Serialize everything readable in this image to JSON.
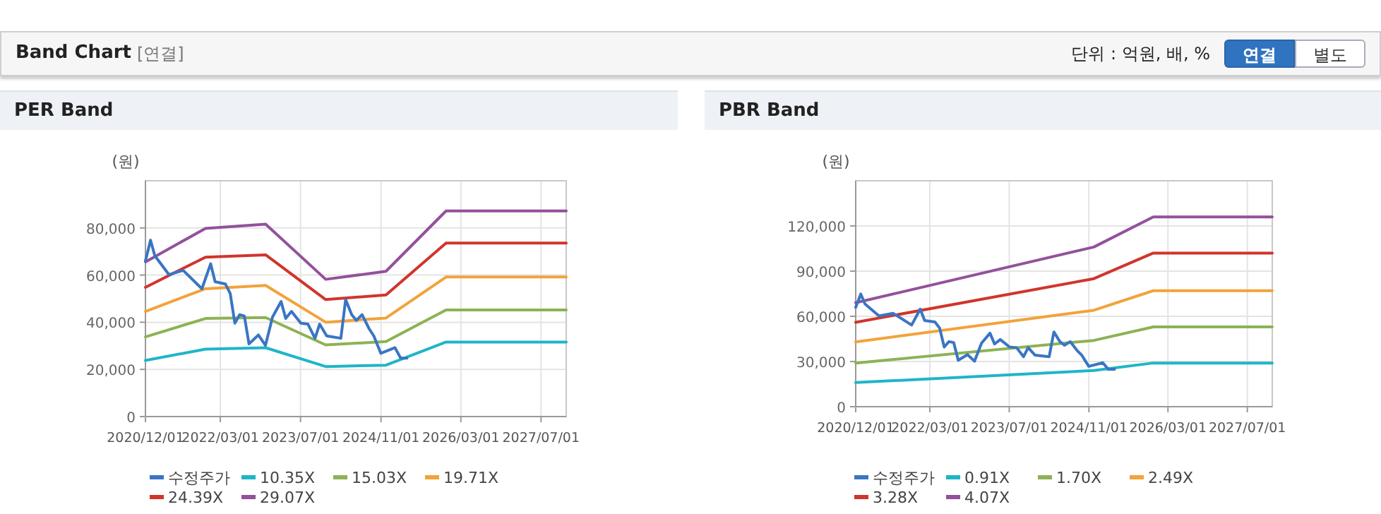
{
  "chart_data": [
    {
      "type": "other",
      "title": "Band Chart",
      "annotations": [
        "[연결]",
        "단위 : 억원, 배, %",
        "연결",
        "별도"
      ]
    },
    {
      "type": "line",
      "title": "PER Band",
      "ylabel": "(원)",
      "xlim": [
        "2020-12-01",
        "2027-12-01"
      ],
      "ylim": [
        0,
        100000
      ],
      "xticks": [
        {
          "value": "2020-12-01",
          "label": "2020/12/01"
        },
        {
          "value": "2022-03-01",
          "label": "2022/03/01"
        },
        {
          "value": "2023-07-01",
          "label": "2023/07/01"
        },
        {
          "value": "2024-11-01",
          "label": "2024/11/01"
        },
        {
          "value": "2026-03-01",
          "label": "2026/03/01"
        },
        {
          "value": "2027-07-01",
          "label": "2027/07/01"
        }
      ],
      "yticks": [
        0,
        {
          "value": 20000,
          "label": "20,000"
        },
        {
          "value": 40000,
          "label": "40,000"
        },
        {
          "value": 60000,
          "label": "60,000"
        },
        {
          "value": 80000,
          "label": "80,000"
        }
      ],
      "grid": true,
      "legend": "bottom",
      "series": [
        {
          "name": "수정주가",
          "color": "#3a75c4",
          "x": [
            "2020-12-01",
            "2021-01-01",
            "2021-01-27",
            "2021-04-23",
            "2021-07-18",
            "2021-11-09",
            "2022-01-01",
            "2022-01-28",
            "2022-04-01",
            "2022-04-30",
            "2022-05-28",
            "2022-06-26",
            "2022-07-25",
            "2022-08-22",
            "2022-10-18",
            "2022-11-30",
            "2023-01-12",
            "2023-03-05",
            "2023-04-02",
            "2023-05-07",
            "2023-07-03",
            "2023-08-15",
            "2023-09-27",
            "2023-10-25",
            "2023-12-07",
            "2024-03-02",
            "2024-03-31",
            "2024-05-07",
            "2024-06-04",
            "2024-07-09",
            "2024-08-21",
            "2024-09-18",
            "2024-10-31",
            "2025-01-25",
            "2025-02-28",
            "2025-04-07"
          ],
          "values": [
            66000,
            74800,
            68200,
            60200,
            62000,
            54200,
            64800,
            57200,
            56200,
            52200,
            39600,
            43200,
            42600,
            30800,
            34600,
            30200,
            42200,
            48800,
            41600,
            44600,
            39600,
            39200,
            33200,
            39200,
            34200,
            33200,
            49600,
            43200,
            40800,
            43200,
            37200,
            34200,
            26800,
            29200,
            24800,
            24800
          ]
        },
        {
          "name": "10.35X",
          "color": "#1fb5c8",
          "x": [
            "2020-12-01",
            "2021-12-01",
            "2022-12-01",
            "2023-12-01",
            "2024-12-01",
            "2025-12-01",
            "2027-12-01"
          ],
          "values": [
            23800,
            28600,
            29200,
            21200,
            21800,
            31600,
            31600
          ]
        },
        {
          "name": "15.03X",
          "color": "#8db255",
          "x": [
            "2020-12-01",
            "2021-12-01",
            "2022-12-01",
            "2023-12-01",
            "2024-12-01",
            "2025-12-01",
            "2027-12-01"
          ],
          "values": [
            33800,
            41600,
            42000,
            30400,
            31800,
            45200,
            45200
          ]
        },
        {
          "name": "19.71X",
          "color": "#f2a33a",
          "x": [
            "2020-12-01",
            "2021-12-01",
            "2022-12-01",
            "2023-12-01",
            "2024-12-01",
            "2025-12-01",
            "2027-12-01"
          ],
          "values": [
            44600,
            54200,
            55600,
            40000,
            41800,
            59200,
            59200
          ]
        },
        {
          "name": "24.39X",
          "color": "#d0352c",
          "x": [
            "2020-12-01",
            "2021-12-01",
            "2022-12-01",
            "2023-12-01",
            "2024-12-01",
            "2025-12-01",
            "2027-12-01"
          ],
          "values": [
            54800,
            67600,
            68600,
            49600,
            51600,
            73600,
            73600
          ]
        },
        {
          "name": "29.07X",
          "color": "#93519b",
          "x": [
            "2020-12-01",
            "2021-12-01",
            "2022-12-01",
            "2023-12-01",
            "2024-12-01",
            "2025-12-01",
            "2027-12-01"
          ],
          "values": [
            65600,
            79800,
            81600,
            58200,
            61600,
            87200,
            87200
          ]
        }
      ]
    },
    {
      "type": "line",
      "title": "PBR Band",
      "ylabel": "(원)",
      "xlim": [
        "2020-12-01",
        "2027-12-01"
      ],
      "ylim": [
        0,
        150000
      ],
      "xticks": [
        {
          "value": "2020-12-01",
          "label": "2020/12/01"
        },
        {
          "value": "2022-03-01",
          "label": "2022/03/01"
        },
        {
          "value": "2023-07-01",
          "label": "2023/07/01"
        },
        {
          "value": "2024-11-01",
          "label": "2024/11/01"
        },
        {
          "value": "2026-03-01",
          "label": "2026/03/01"
        },
        {
          "value": "2027-07-01",
          "label": "2027/07/01"
        }
      ],
      "yticks": [
        0,
        {
          "value": 30000,
          "label": "30,000"
        },
        {
          "value": 60000,
          "label": "60,000"
        },
        {
          "value": 90000,
          "label": "90,000"
        },
        {
          "value": 120000,
          "label": "120,000"
        }
      ],
      "grid": true,
      "legend": "bottom",
      "series": [
        {
          "name": "수정주가",
          "color": "#3a75c4",
          "x": [
            "2020-12-01",
            "2021-01-01",
            "2021-01-27",
            "2021-04-23",
            "2021-07-18",
            "2021-11-09",
            "2022-01-01",
            "2022-01-28",
            "2022-04-01",
            "2022-04-30",
            "2022-05-28",
            "2022-06-26",
            "2022-07-25",
            "2022-08-22",
            "2022-10-18",
            "2022-11-30",
            "2023-01-12",
            "2023-03-05",
            "2023-04-02",
            "2023-05-07",
            "2023-07-03",
            "2023-08-15",
            "2023-09-27",
            "2023-10-25",
            "2023-12-07",
            "2024-03-02",
            "2024-03-31",
            "2024-05-07",
            "2024-06-04",
            "2024-07-09",
            "2024-08-21",
            "2024-09-18",
            "2024-10-31",
            "2025-01-25",
            "2025-02-28",
            "2025-04-07"
          ],
          "values": [
            66000,
            74800,
            68200,
            60200,
            62000,
            54200,
            64800,
            57200,
            56200,
            52200,
            39600,
            43200,
            42600,
            30800,
            34600,
            30200,
            42200,
            48800,
            41600,
            44600,
            39600,
            39200,
            33200,
            39200,
            34200,
            33200,
            49600,
            43200,
            40800,
            43200,
            37200,
            34200,
            26800,
            29200,
            24800,
            24800
          ]
        },
        {
          "name": "0.91X",
          "color": "#1fb5c8",
          "x": [
            "2020-12-01",
            "2024-12-01",
            "2025-12-01",
            "2027-12-01"
          ],
          "values": [
            16000,
            24000,
            29000,
            29000
          ]
        },
        {
          "name": "1.70X",
          "color": "#8db255",
          "x": [
            "2020-12-01",
            "2024-12-01",
            "2025-12-01",
            "2027-12-01"
          ],
          "values": [
            29000,
            44000,
            53000,
            53000
          ]
        },
        {
          "name": "2.49X",
          "color": "#f2a33a",
          "x": [
            "2020-12-01",
            "2024-12-01",
            "2025-12-01",
            "2027-12-01"
          ],
          "values": [
            43000,
            64000,
            77000,
            77000
          ]
        },
        {
          "name": "3.28X",
          "color": "#d0352c",
          "x": [
            "2020-12-01",
            "2024-12-01",
            "2025-12-01",
            "2027-12-01"
          ],
          "values": [
            56000,
            85000,
            102000,
            102000
          ]
        },
        {
          "name": "4.07X",
          "color": "#93519b",
          "x": [
            "2020-12-01",
            "2024-12-01",
            "2025-12-01",
            "2027-12-01"
          ],
          "values": [
            69000,
            106000,
            126000,
            126000
          ]
        }
      ]
    }
  ]
}
